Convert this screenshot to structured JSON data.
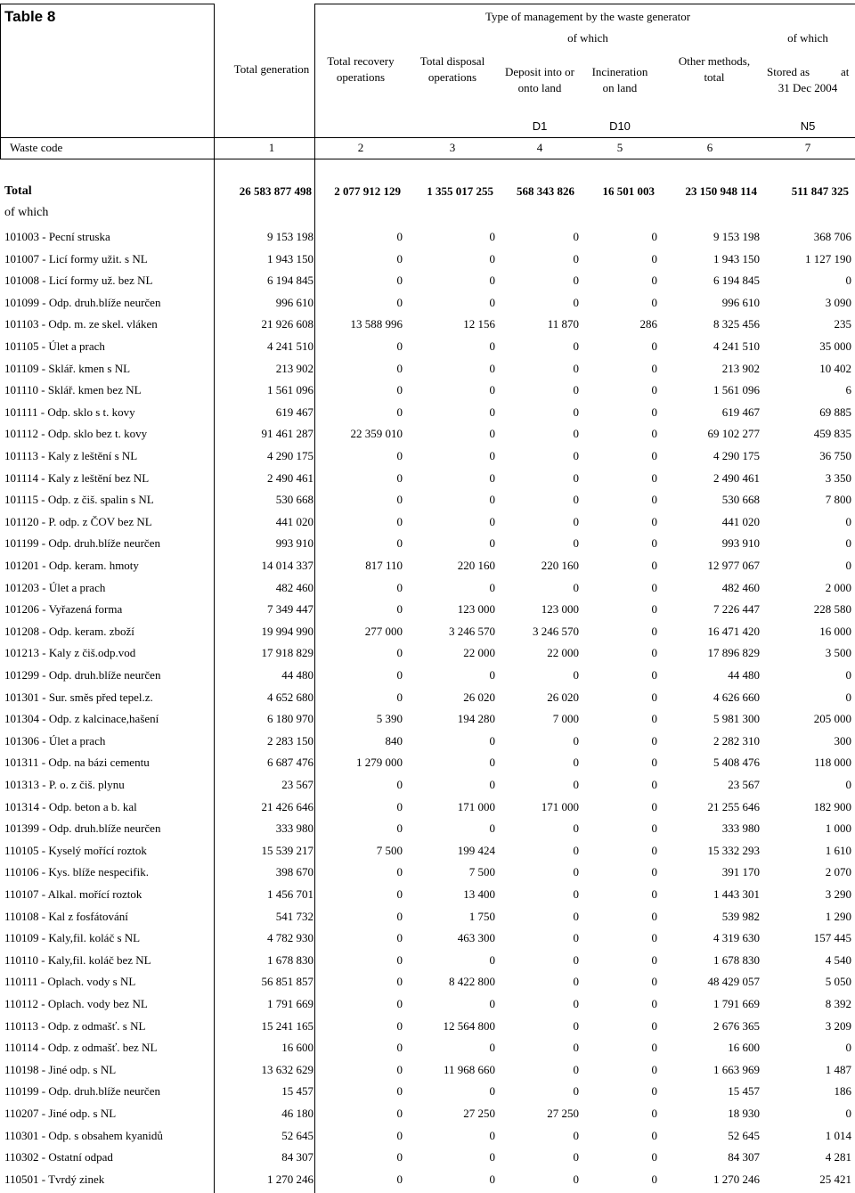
{
  "table_title": "Table 8",
  "header": {
    "group_title": "Type of management by the waste generator",
    "of_which_1": "of which",
    "of_which_2": "of which",
    "col_total_generation": "Total generation",
    "col_total_recovery": [
      "Total recovery",
      "operations"
    ],
    "col_total_disposal": [
      "Total disposal",
      "operations"
    ],
    "col_deposit": [
      "Deposit into or",
      "onto land"
    ],
    "col_incineration": [
      "Incineration",
      "on land"
    ],
    "col_other": [
      "Other methods,",
      "total"
    ],
    "col_stored": [
      "Stored as",
      "at",
      "31 Dec 2004"
    ],
    "codes": [
      "D1",
      "D10",
      "N5"
    ],
    "waste_code_label": "Waste code",
    "numbers": [
      "1",
      "2",
      "3",
      "4",
      "5",
      "6",
      "7"
    ]
  },
  "total_row": {
    "label": "Total",
    "values": [
      "26 583 877 498",
      "2 077 912 129",
      "1 355 017 255",
      "568 343 826",
      "16 501 003",
      "23 150 948 114",
      "511 847 325"
    ]
  },
  "of_which_label": "of which",
  "rows": [
    {
      "label": "101003 - Pecní struska",
      "values": [
        "9 153 198",
        "0",
        "0",
        "0",
        "0",
        "9 153 198",
        "368 706"
      ]
    },
    {
      "label": "101007 - Licí formy užit. s NL",
      "values": [
        "1 943 150",
        "0",
        "0",
        "0",
        "0",
        "1 943 150",
        "1 127 190"
      ]
    },
    {
      "label": "101008 - Licí formy už. bez NL",
      "values": [
        "6 194 845",
        "0",
        "0",
        "0",
        "0",
        "6 194 845",
        "0"
      ]
    },
    {
      "label": "101099 - Odp. druh.blíže neurčen",
      "values": [
        "996 610",
        "0",
        "0",
        "0",
        "0",
        "996 610",
        "3 090"
      ]
    },
    {
      "label": "101103 - Odp. m. ze skel. vláken",
      "values": [
        "21 926 608",
        "13 588 996",
        "12 156",
        "11 870",
        "286",
        "8 325 456",
        "235"
      ]
    },
    {
      "label": "101105 - Úlet a prach",
      "values": [
        "4 241 510",
        "0",
        "0",
        "0",
        "0",
        "4 241 510",
        "35 000"
      ]
    },
    {
      "label": "101109 - Sklář. kmen s NL",
      "values": [
        "213 902",
        "0",
        "0",
        "0",
        "0",
        "213 902",
        "10 402"
      ]
    },
    {
      "label": "101110 - Sklář. kmen bez NL",
      "values": [
        "1 561 096",
        "0",
        "0",
        "0",
        "0",
        "1 561 096",
        "6"
      ]
    },
    {
      "label": "101111 - Odp. sklo s t. kovy",
      "values": [
        "619 467",
        "0",
        "0",
        "0",
        "0",
        "619 467",
        "69 885"
      ]
    },
    {
      "label": "101112 - Odp. sklo bez t. kovy",
      "values": [
        "91 461 287",
        "22 359 010",
        "0",
        "0",
        "0",
        "69 102 277",
        "459 835"
      ]
    },
    {
      "label": "101113 - Kaly z leštění s NL",
      "values": [
        "4 290 175",
        "0",
        "0",
        "0",
        "0",
        "4 290 175",
        "36 750"
      ]
    },
    {
      "label": "101114 - Kaly z leštění bez NL",
      "values": [
        "2 490 461",
        "0",
        "0",
        "0",
        "0",
        "2 490 461",
        "3 350"
      ]
    },
    {
      "label": "101115 - Odp. z čiš. spalin s NL",
      "values": [
        "530 668",
        "0",
        "0",
        "0",
        "0",
        "530 668",
        "7 800"
      ]
    },
    {
      "label": "101120 - P. odp. z ČOV bez NL",
      "values": [
        "441 020",
        "0",
        "0",
        "0",
        "0",
        "441 020",
        "0"
      ]
    },
    {
      "label": "101199 - Odp. druh.blíže neurčen",
      "values": [
        "993 910",
        "0",
        "0",
        "0",
        "0",
        "993 910",
        "0"
      ]
    },
    {
      "label": "101201 - Odp. keram. hmoty",
      "values": [
        "14 014 337",
        "817 110",
        "220 160",
        "220 160",
        "0",
        "12 977 067",
        "0"
      ]
    },
    {
      "label": "101203 - Úlet a prach",
      "values": [
        "482 460",
        "0",
        "0",
        "0",
        "0",
        "482 460",
        "2 000"
      ]
    },
    {
      "label": "101206 - Vyřazená forma",
      "values": [
        "7 349 447",
        "0",
        "123 000",
        "123 000",
        "0",
        "7 226 447",
        "228 580"
      ]
    },
    {
      "label": "101208 - Odp. keram. zboží",
      "values": [
        "19 994 990",
        "277 000",
        "3 246 570",
        "3 246 570",
        "0",
        "16 471 420",
        "16 000"
      ]
    },
    {
      "label": "101213 - Kaly z čiš.odp.vod",
      "values": [
        "17 918 829",
        "0",
        "22 000",
        "22 000",
        "0",
        "17 896 829",
        "3 500"
      ]
    },
    {
      "label": "101299 - Odp. druh.blíže neurčen",
      "values": [
        "44 480",
        "0",
        "0",
        "0",
        "0",
        "44 480",
        "0"
      ]
    },
    {
      "label": "101301 - Sur. směs před tepel.z.",
      "values": [
        "4 652 680",
        "0",
        "26 020",
        "26 020",
        "0",
        "4 626 660",
        "0"
      ]
    },
    {
      "label": "101304 - Odp. z kalcinace,hašení",
      "values": [
        "6 180 970",
        "5 390",
        "194 280",
        "7 000",
        "0",
        "5 981 300",
        "205 000"
      ]
    },
    {
      "label": "101306 - Úlet a prach",
      "values": [
        "2 283 150",
        "840",
        "0",
        "0",
        "0",
        "2 282 310",
        "300"
      ]
    },
    {
      "label": "101311 - Odp. na bázi cementu",
      "values": [
        "6 687 476",
        "1 279 000",
        "0",
        "0",
        "0",
        "5 408 476",
        "118 000"
      ]
    },
    {
      "label": "101313 - P. o. z čiš. plynu",
      "values": [
        "23 567",
        "0",
        "0",
        "0",
        "0",
        "23 567",
        "0"
      ]
    },
    {
      "label": "101314 - Odp. beton a b. kal",
      "values": [
        "21 426 646",
        "0",
        "171 000",
        "171 000",
        "0",
        "21 255 646",
        "182 900"
      ]
    },
    {
      "label": "101399 - Odp. druh.blíže neurčen",
      "values": [
        "333 980",
        "0",
        "0",
        "0",
        "0",
        "333 980",
        "1 000"
      ]
    },
    {
      "label": "110105 - Kyselý mořící roztok",
      "values": [
        "15 539 217",
        "7 500",
        "199 424",
        "0",
        "0",
        "15 332 293",
        "1 610"
      ]
    },
    {
      "label": "110106 - Kys. blíže nespecifik.",
      "values": [
        "398 670",
        "0",
        "7 500",
        "0",
        "0",
        "391 170",
        "2 070"
      ]
    },
    {
      "label": "110107 - Alkal. mořící roztok",
      "values": [
        "1 456 701",
        "0",
        "13 400",
        "0",
        "0",
        "1 443 301",
        "3 290"
      ]
    },
    {
      "label": "110108 - Kal z fosfátování",
      "values": [
        "541 732",
        "0",
        "1 750",
        "0",
        "0",
        "539 982",
        "1 290"
      ]
    },
    {
      "label": "110109 - Kaly,fil. koláč s NL",
      "values": [
        "4 782 930",
        "0",
        "463 300",
        "0",
        "0",
        "4 319 630",
        "157 445"
      ]
    },
    {
      "label": "110110 - Kaly,fil. koláč bez NL",
      "values": [
        "1 678 830",
        "0",
        "0",
        "0",
        "0",
        "1 678 830",
        "4 540"
      ]
    },
    {
      "label": "110111 - Oplach. vody s NL",
      "values": [
        "56 851 857",
        "0",
        "8 422 800",
        "0",
        "0",
        "48 429 057",
        "5 050"
      ]
    },
    {
      "label": "110112 - Oplach. vody bez NL",
      "values": [
        "1 791 669",
        "0",
        "0",
        "0",
        "0",
        "1 791 669",
        "8 392"
      ]
    },
    {
      "label": "110113 - Odp. z odmašť. s NL",
      "values": [
        "15 241 165",
        "0",
        "12 564 800",
        "0",
        "0",
        "2 676 365",
        "3 209"
      ]
    },
    {
      "label": "110114 - Odp. z odmašť. bez NL",
      "values": [
        "16 600",
        "0",
        "0",
        "0",
        "0",
        "16 600",
        "0"
      ]
    },
    {
      "label": "110198 - Jiné odp. s NL",
      "values": [
        "13 632 629",
        "0",
        "11 968 660",
        "0",
        "0",
        "1 663 969",
        "1 487"
      ]
    },
    {
      "label": "110199 - Odp. druh.blíže neurčen",
      "values": [
        "15 457",
        "0",
        "0",
        "0",
        "0",
        "15 457",
        "186"
      ]
    },
    {
      "label": "110207 - Jiné odp. s NL",
      "values": [
        "46 180",
        "0",
        "27 250",
        "27 250",
        "0",
        "18 930",
        "0"
      ]
    },
    {
      "label": "110301 - Odp. s obsahem kyanidů",
      "values": [
        "52 645",
        "0",
        "0",
        "0",
        "0",
        "52 645",
        "1 014"
      ]
    },
    {
      "label": "110302 - Ostatní odpad",
      "values": [
        "84 307",
        "0",
        "0",
        "0",
        "0",
        "84 307",
        "4 281"
      ]
    },
    {
      "label": "110501 - Tvrdý zinek",
      "values": [
        "1 270 246",
        "0",
        "0",
        "0",
        "0",
        "1 270 246",
        "25 421"
      ]
    }
  ]
}
